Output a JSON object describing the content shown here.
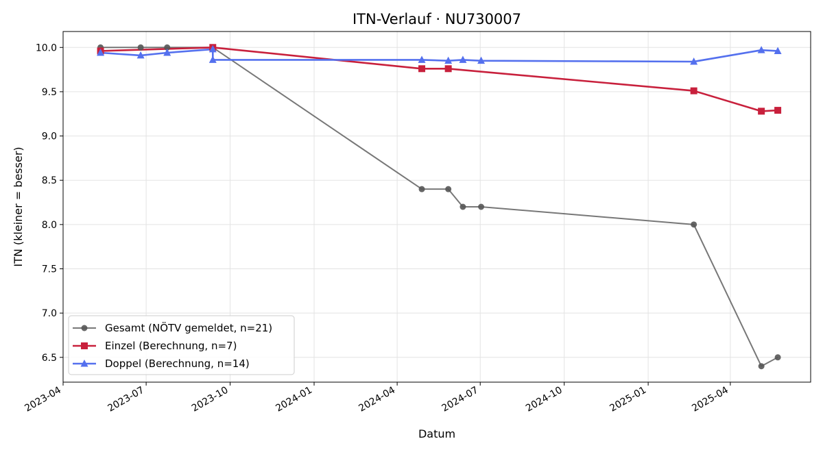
{
  "chart_data": {
    "type": "line",
    "title": "ITN-Verlauf · NU730007",
    "xlabel": "Datum",
    "ylabel": "ITN  (kleiner = besser)",
    "x_type": "date",
    "xlim": [
      "2023-04-01",
      "2025-06-28"
    ],
    "ylim": [
      6.22,
      10.18
    ],
    "x_ticks": [
      "2023-04-01",
      "2023-07-01",
      "2023-10-01",
      "2024-01-01",
      "2024-04-01",
      "2024-07-01",
      "2024-10-01",
      "2025-01-01",
      "2025-04-01"
    ],
    "x_tick_labels": [
      "2023-04",
      "2023-07",
      "2023-10",
      "2024-01",
      "2024-04",
      "2024-07",
      "2024-10",
      "2025-01",
      "2025-04"
    ],
    "y_ticks": [
      6.5,
      7.0,
      7.5,
      8.0,
      8.5,
      9.0,
      9.5,
      10.0
    ],
    "y_tick_labels": [
      "6.5",
      "7.0",
      "7.5",
      "8.0",
      "8.5",
      "9.0",
      "9.5",
      "10.0"
    ],
    "grid": true,
    "legend_position": "lower-left",
    "series": [
      {
        "name": "Gesamt (NÖTV gemeldet, n=21)",
        "color": "#555555",
        "marker": "circle",
        "points": [
          {
            "x": "2023-05-12",
            "y": 10.0
          },
          {
            "x": "2023-06-25",
            "y": 10.0
          },
          {
            "x": "2023-07-24",
            "y": 10.0
          },
          {
            "x": "2023-09-12",
            "y": 10.0
          },
          {
            "x": "2024-04-28",
            "y": 8.4
          },
          {
            "x": "2024-05-27",
            "y": 8.4
          },
          {
            "x": "2024-06-12",
            "y": 8.2
          },
          {
            "x": "2024-07-02",
            "y": 8.2
          },
          {
            "x": "2025-02-20",
            "y": 8.0
          },
          {
            "x": "2025-05-05",
            "y": 6.4
          },
          {
            "x": "2025-05-23",
            "y": 6.5
          }
        ]
      },
      {
        "name": "Einzel (Berechnung, n=7)",
        "color": "#c8203c",
        "marker": "square",
        "points": [
          {
            "x": "2023-05-12",
            "y": 9.96
          },
          {
            "x": "2023-09-12",
            "y": 10.0
          },
          {
            "x": "2024-04-28",
            "y": 9.76
          },
          {
            "x": "2024-05-27",
            "y": 9.76
          },
          {
            "x": "2025-02-20",
            "y": 9.51
          },
          {
            "x": "2025-05-05",
            "y": 9.28
          },
          {
            "x": "2025-05-23",
            "y": 9.29
          }
        ]
      },
      {
        "name": "Doppel (Berechnung, n=14)",
        "color": "#5470ee",
        "marker": "triangle",
        "points": [
          {
            "x": "2023-05-12",
            "y": 9.94
          },
          {
            "x": "2023-06-25",
            "y": 9.91
          },
          {
            "x": "2023-07-24",
            "y": 9.94
          },
          {
            "x": "2023-09-12",
            "y": 9.98
          },
          {
            "x": "2023-09-12",
            "y": 9.86
          },
          {
            "x": "2024-04-28",
            "y": 9.86
          },
          {
            "x": "2024-05-27",
            "y": 9.85
          },
          {
            "x": "2024-06-12",
            "y": 9.86
          },
          {
            "x": "2024-07-02",
            "y": 9.85
          },
          {
            "x": "2025-02-20",
            "y": 9.84
          },
          {
            "x": "2025-05-05",
            "y": 9.97
          },
          {
            "x": "2025-05-23",
            "y": 9.96
          }
        ]
      }
    ]
  }
}
